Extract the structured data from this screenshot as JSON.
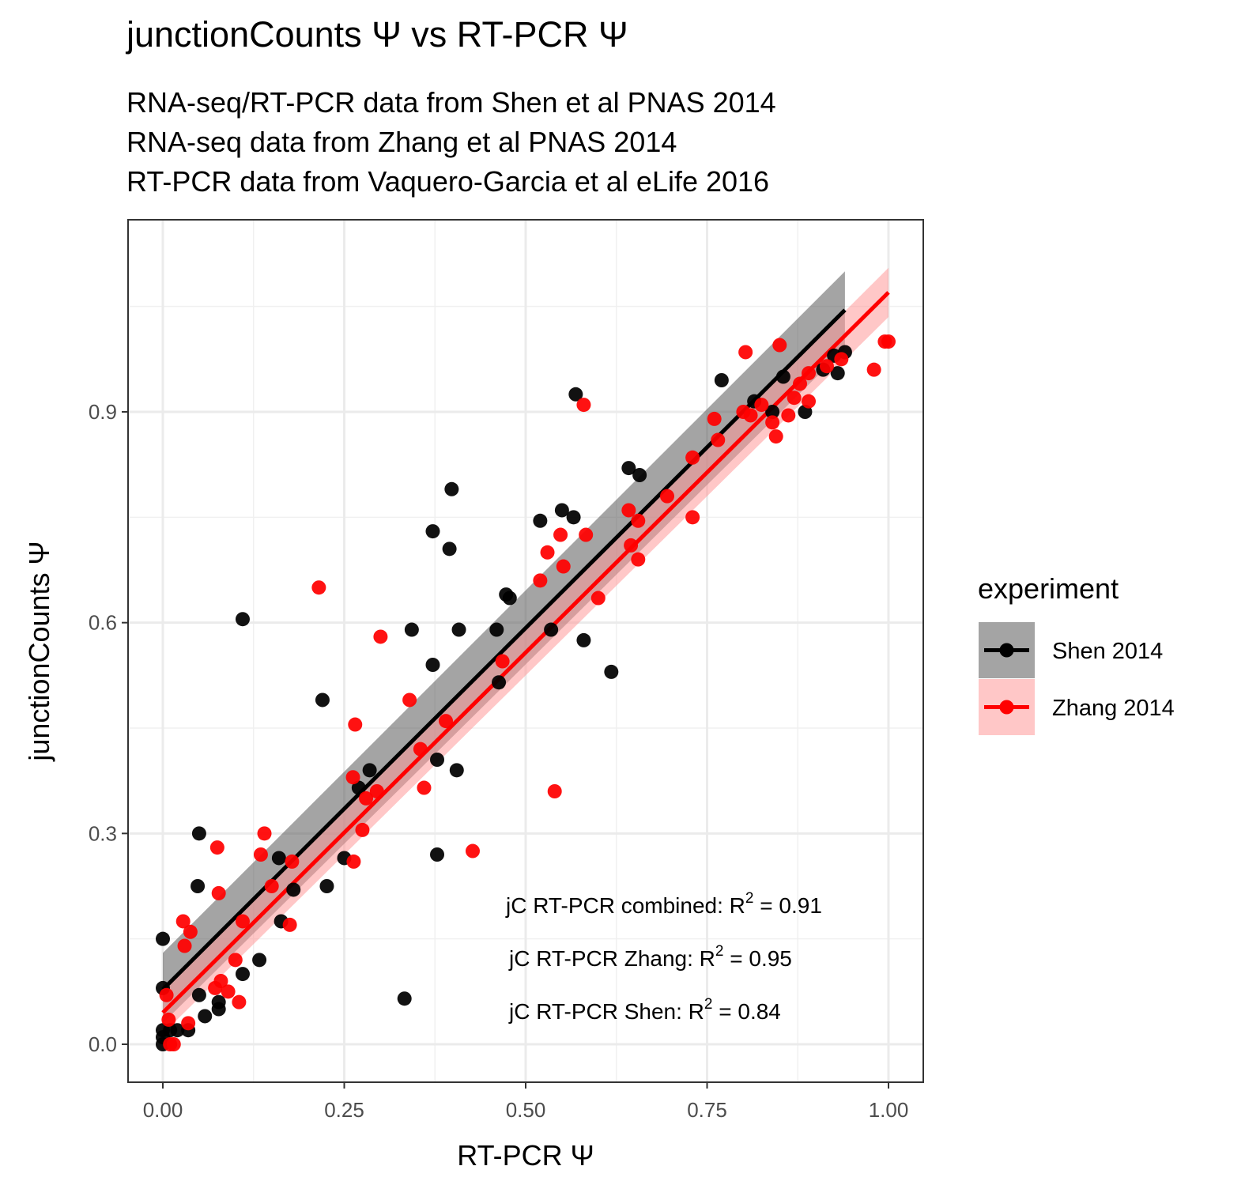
{
  "chart_data": {
    "type": "scatter",
    "title": "junctionCounts Ψ vs RT-PCR Ψ",
    "subtitle_lines": [
      "RNA-seq/RT-PCR data from Shen et al PNAS 2014",
      "RNA-seq data from Zhang et al PNAS 2014",
      "RT-PCR data from Vaquero-Garcia et al eLife 2016"
    ],
    "xlabel": "RT-PCR Ψ",
    "ylabel": "junctionCounts Ψ",
    "xlim": [
      -0.05,
      1.05
    ],
    "ylim": [
      -0.05,
      1.17
    ],
    "x_ticks": [
      0.0,
      0.25,
      0.5,
      0.75,
      1.0
    ],
    "x_tick_labels": [
      "0.00",
      "0.25",
      "0.50",
      "0.75",
      "1.00"
    ],
    "y_ticks": [
      0.0,
      0.3,
      0.6,
      0.9
    ],
    "y_tick_labels": [
      "0.0",
      "0.3",
      "0.6",
      "0.9"
    ],
    "grid": true,
    "theme": "bw",
    "legend": {
      "title": "experiment",
      "position": "right",
      "entries": [
        "Shen 2014",
        "Zhang 2014"
      ]
    },
    "annotations": [
      {
        "prefix": "jC RT-PCR combined: R",
        "sup": "2",
        "suffix": " = 0.91"
      },
      {
        "prefix": "jC RT-PCR Zhang: R",
        "sup": "2",
        "suffix": " = 0.95"
      },
      {
        "prefix": "jC RT-PCR Shen: R",
        "sup": "2",
        "suffix": " = 0.84"
      }
    ],
    "series": [
      {
        "name": "Shen 2014",
        "color": "#000000",
        "band_color": "#595959",
        "fit": {
          "x": [
            0.0,
            0.94
          ],
          "y": [
            0.078,
            1.045
          ],
          "ci": [
            [
              0.0,
              0.03,
              0.13
            ],
            [
              0.94,
              0.99,
              1.1
            ]
          ]
        },
        "points": [
          [
            0.0,
            0.15
          ],
          [
            0.0,
            0.08
          ],
          [
            0.0,
            0.02
          ],
          [
            0.0,
            0.01
          ],
          [
            0.0,
            0.0
          ],
          [
            0.01,
            0.02
          ],
          [
            0.02,
            0.02
          ],
          [
            0.035,
            0.02
          ],
          [
            0.05,
            0.3
          ],
          [
            0.048,
            0.225
          ],
          [
            0.05,
            0.07
          ],
          [
            0.058,
            0.04
          ],
          [
            0.077,
            0.06
          ],
          [
            0.077,
            0.05
          ],
          [
            0.11,
            0.605
          ],
          [
            0.11,
            0.1
          ],
          [
            0.133,
            0.12
          ],
          [
            0.16,
            0.265
          ],
          [
            0.163,
            0.175
          ],
          [
            0.18,
            0.22
          ],
          [
            0.22,
            0.49
          ],
          [
            0.226,
            0.225
          ],
          [
            0.25,
            0.265
          ],
          [
            0.27,
            0.365
          ],
          [
            0.285,
            0.39
          ],
          [
            0.333,
            0.065
          ],
          [
            0.343,
            0.59
          ],
          [
            0.372,
            0.73
          ],
          [
            0.372,
            0.54
          ],
          [
            0.378,
            0.405
          ],
          [
            0.378,
            0.27
          ],
          [
            0.395,
            0.705
          ],
          [
            0.398,
            0.79
          ],
          [
            0.405,
            0.39
          ],
          [
            0.408,
            0.59
          ],
          [
            0.46,
            0.59
          ],
          [
            0.463,
            0.515
          ],
          [
            0.473,
            0.64
          ],
          [
            0.478,
            0.635
          ],
          [
            0.52,
            0.745
          ],
          [
            0.535,
            0.59
          ],
          [
            0.55,
            0.76
          ],
          [
            0.566,
            0.75
          ],
          [
            0.569,
            0.925
          ],
          [
            0.58,
            0.575
          ],
          [
            0.618,
            0.53
          ],
          [
            0.642,
            0.82
          ],
          [
            0.657,
            0.81
          ],
          [
            0.77,
            0.945
          ],
          [
            0.815,
            0.915
          ],
          [
            0.84,
            0.9
          ],
          [
            0.855,
            0.95
          ],
          [
            0.885,
            0.9
          ],
          [
            0.91,
            0.96
          ],
          [
            0.925,
            0.98
          ],
          [
            0.93,
            0.955
          ],
          [
            0.94,
            0.985
          ]
        ]
      },
      {
        "name": "Zhang 2014",
        "color": "#ff0000",
        "band_color": "#ff9999",
        "fit": {
          "x": [
            0.0,
            1.0
          ],
          "y": [
            0.045,
            1.07
          ],
          "ci": [
            [
              0.0,
              0.015,
              0.075
            ],
            [
              1.0,
              1.035,
              1.105
            ]
          ]
        },
        "points": [
          [
            0.005,
            0.07
          ],
          [
            0.008,
            0.035
          ],
          [
            0.01,
            0.0
          ],
          [
            0.015,
            0.0
          ],
          [
            0.028,
            0.175
          ],
          [
            0.03,
            0.14
          ],
          [
            0.035,
            0.03
          ],
          [
            0.038,
            0.16
          ],
          [
            0.075,
            0.28
          ],
          [
            0.077,
            0.215
          ],
          [
            0.072,
            0.08
          ],
          [
            0.08,
            0.09
          ],
          [
            0.09,
            0.075
          ],
          [
            0.1,
            0.12
          ],
          [
            0.105,
            0.06
          ],
          [
            0.11,
            0.175
          ],
          [
            0.135,
            0.27
          ],
          [
            0.14,
            0.3
          ],
          [
            0.15,
            0.225
          ],
          [
            0.175,
            0.17
          ],
          [
            0.178,
            0.26
          ],
          [
            0.215,
            0.65
          ],
          [
            0.262,
            0.38
          ],
          [
            0.263,
            0.26
          ],
          [
            0.265,
            0.455
          ],
          [
            0.275,
            0.305
          ],
          [
            0.28,
            0.35
          ],
          [
            0.295,
            0.36
          ],
          [
            0.3,
            0.58
          ],
          [
            0.34,
            0.49
          ],
          [
            0.355,
            0.42
          ],
          [
            0.36,
            0.365
          ],
          [
            0.39,
            0.46
          ],
          [
            0.427,
            0.275
          ],
          [
            0.468,
            0.545
          ],
          [
            0.52,
            0.66
          ],
          [
            0.53,
            0.7
          ],
          [
            0.54,
            0.36
          ],
          [
            0.548,
            0.725
          ],
          [
            0.552,
            0.68
          ],
          [
            0.58,
            0.91
          ],
          [
            0.583,
            0.725
          ],
          [
            0.6,
            0.635
          ],
          [
            0.642,
            0.76
          ],
          [
            0.645,
            0.71
          ],
          [
            0.655,
            0.745
          ],
          [
            0.655,
            0.69
          ],
          [
            0.695,
            0.78
          ],
          [
            0.73,
            0.75
          ],
          [
            0.73,
            0.835
          ],
          [
            0.76,
            0.89
          ],
          [
            0.765,
            0.86
          ],
          [
            0.8,
            0.9
          ],
          [
            0.803,
            0.985
          ],
          [
            0.81,
            0.895
          ],
          [
            0.825,
            0.91
          ],
          [
            0.84,
            0.885
          ],
          [
            0.845,
            0.865
          ],
          [
            0.85,
            0.995
          ],
          [
            0.862,
            0.895
          ],
          [
            0.87,
            0.92
          ],
          [
            0.878,
            0.94
          ],
          [
            0.89,
            0.915
          ],
          [
            0.89,
            0.955
          ],
          [
            0.915,
            0.965
          ],
          [
            0.935,
            0.975
          ],
          [
            0.98,
            0.96
          ],
          [
            0.995,
            1.0
          ],
          [
            1.0,
            1.0
          ]
        ]
      }
    ]
  }
}
